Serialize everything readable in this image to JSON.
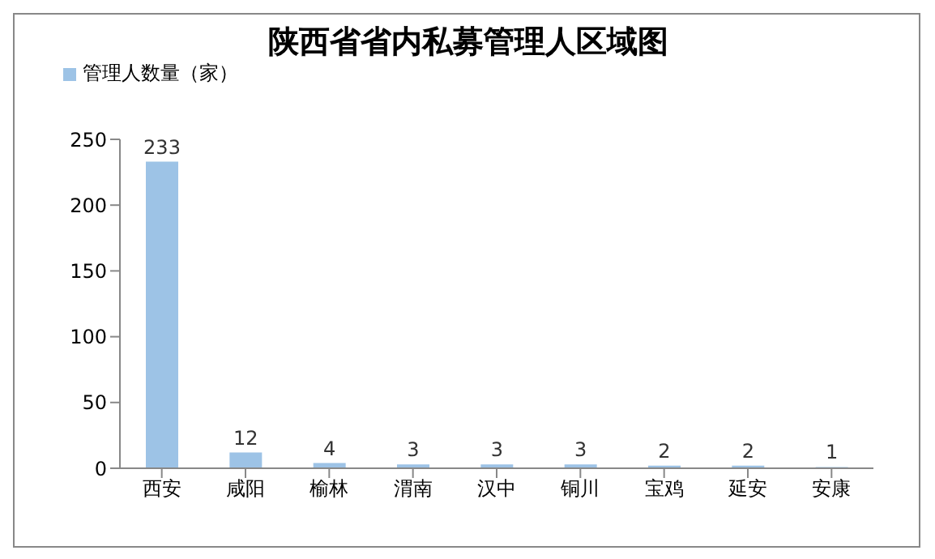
{
  "chart_data": {
    "type": "bar",
    "title": "陕西省省内私募管理人区域图",
    "categories": [
      "西安",
      "咸阳",
      "榆林",
      "渭南",
      "汉中",
      "铜川",
      "宝鸡",
      "延安",
      "安康"
    ],
    "series": [
      {
        "name": "管理人数量（家）",
        "color": "#9dc3e6",
        "values": [
          233,
          12,
          4,
          3,
          3,
          3,
          2,
          2,
          1
        ]
      }
    ],
    "ylim": [
      0,
      250
    ],
    "yticks": [
      0,
      50,
      100,
      150,
      200,
      250
    ],
    "grid": false,
    "legend": "top left",
    "data_labels": true
  }
}
